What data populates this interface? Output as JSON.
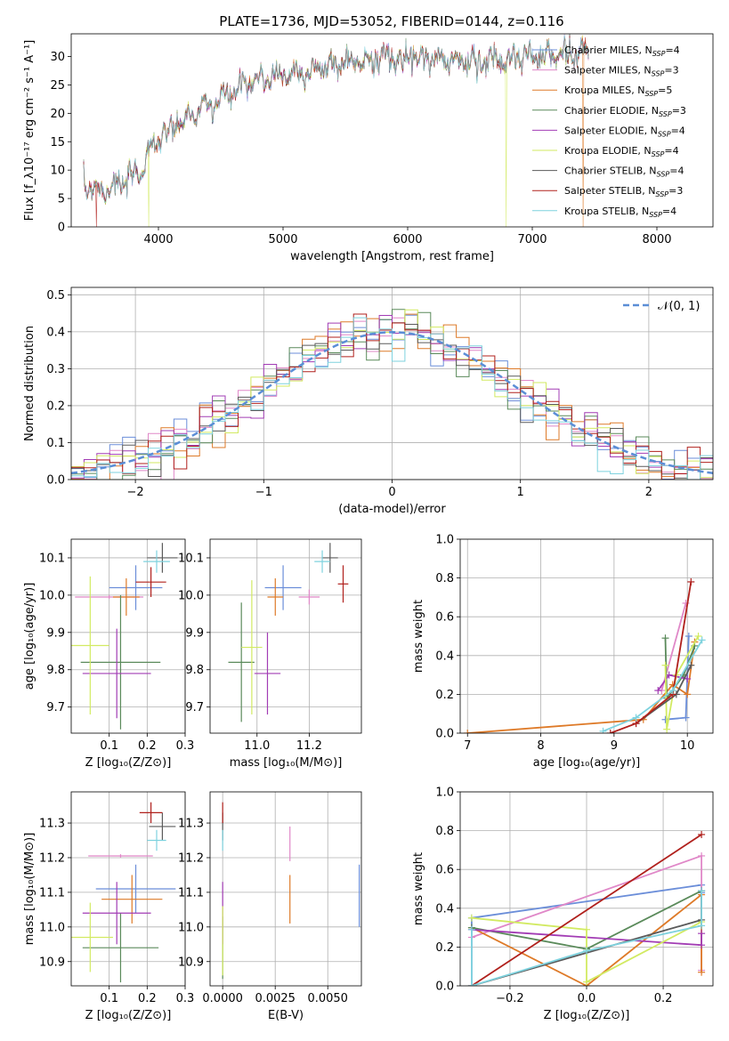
{
  "title": "PLATE=1736, MJD=53052, FIBERID=0144, z=0.116",
  "colors": {
    "chabrier_miles": "#6b8ed9",
    "salpeter_miles": "#e088c8",
    "kroupa_miles": "#de7a28",
    "chabrier_elodie": "#5a8a5a",
    "salpeter_elodie": "#a23cb4",
    "kroupa_elodie": "#d2ea62",
    "chabrier_stelib": "#5a5a5a",
    "salpeter_stelib": "#b0201c",
    "kroupa_stelib": "#7ed2de",
    "normal": "#5b8ed6"
  },
  "chart_data": [
    {
      "id": "spectrum",
      "type": "line",
      "title": "PLATE=1736, MJD=53052, FIBERID=0144, z=0.116",
      "xlabel": "wavelength [Angstrom, rest frame]",
      "ylabel": "Flux [f_λ10⁻¹⁷ erg cm⁻² s⁻¹ A⁻¹]",
      "xlim": [
        3300,
        8450
      ],
      "ylim": [
        0,
        34
      ],
      "xticks": [
        "4000",
        "5000",
        "6000",
        "7000",
        "8000"
      ],
      "yticks": [
        "0",
        "5",
        "10",
        "15",
        "20",
        "25",
        "30"
      ],
      "legend_position": "right",
      "continuum": {
        "x": [
          3400,
          3550,
          3700,
          3850,
          3950,
          4050,
          4150,
          4300,
          4500,
          4700,
          4900,
          5100,
          5300,
          5500,
          5700,
          5900,
          6100,
          6300,
          6500,
          6700,
          6900,
          7100,
          7300,
          7450
        ],
        "y": [
          7.5,
          6.5,
          7.5,
          9.5,
          14.5,
          16,
          18,
          20,
          22.5,
          25,
          26.5,
          27,
          28,
          29,
          29.5,
          30,
          30,
          29.5,
          29,
          29.5,
          30,
          30,
          30.5,
          31
        ]
      },
      "dips": [
        {
          "model": "Salpeter STELIB",
          "x": 3500
        },
        {
          "model": "Kroupa ELODIE",
          "x": 3920
        },
        {
          "model": "Kroupa ELODIE",
          "x": 6790
        },
        {
          "model": "Kroupa MILES",
          "x": 7410
        }
      ],
      "series": [
        {
          "name": "Chabrier MILES, N_SSP=4",
          "sub": "SSP",
          "before": "Chabrier MILES, N",
          "after": "=4",
          "color": "#6b8ed9"
        },
        {
          "name": "Salpeter MILES, N_SSP=3",
          "sub": "SSP",
          "before": "Salpeter MILES, N",
          "after": "=3",
          "color": "#e088c8"
        },
        {
          "name": "Kroupa MILES, N_SSP=5",
          "sub": "SSP",
          "before": "Kroupa MILES, N",
          "after": "=5",
          "color": "#de7a28"
        },
        {
          "name": "Chabrier ELODIE, N_SSP=3",
          "sub": "SSP",
          "before": "Chabrier ELODIE, N",
          "after": "=3",
          "color": "#5a8a5a"
        },
        {
          "name": "Salpeter ELODIE, N_SSP=4",
          "sub": "SSP",
          "before": "Salpeter ELODIE, N",
          "after": "=4",
          "color": "#a23cb4"
        },
        {
          "name": "Kroupa ELODIE, N_SSP=4",
          "sub": "SSP",
          "before": "Kroupa ELODIE, N",
          "after": "=4",
          "color": "#d2ea62"
        },
        {
          "name": "Chabrier STELIB, N_SSP=4",
          "sub": "SSP",
          "before": "Chabrier STELIB, N",
          "after": "=4",
          "color": "#5a5a5a"
        },
        {
          "name": "Salpeter STELIB, N_SSP=3",
          "sub": "SSP",
          "before": "Salpeter STELIB, N",
          "after": "=3",
          "color": "#b0201c"
        },
        {
          "name": "Kroupa STELIB, N_SSP=4",
          "sub": "SSP",
          "before": "Kroupa STELIB, N",
          "after": "=4",
          "color": "#7ed2de"
        }
      ]
    },
    {
      "id": "residuals",
      "type": "step",
      "xlabel": "(data-model)/error",
      "ylabel": "Normed distribution",
      "xlim": [
        -2.5,
        2.5
      ],
      "ylim": [
        0,
        0.52
      ],
      "xticks": [
        "−2",
        "−1",
        "0",
        "1",
        "2"
      ],
      "yticks": [
        "0.0",
        "0.1",
        "0.2",
        "0.3",
        "0.4",
        "0.5"
      ],
      "grid": true,
      "legend": "𝒩(0, 1)",
      "legend_position": "top-right",
      "bin_width": 0.1
    },
    {
      "id": "age_vs_Z",
      "type": "errorbar",
      "xlabel": "Z [log₁₀(Z/Z⊙)]",
      "ylabel": "age  [log₁₀(age/yr)]",
      "xlim": [
        0,
        0.3
      ],
      "ylim": [
        9.63,
        10.15
      ],
      "xticks": [
        "0.1",
        "0.2",
        "0.3"
      ],
      "yticks": [
        "9.7",
        "9.8",
        "9.9",
        "10.0",
        "10.1"
      ],
      "grid": true,
      "points": [
        {
          "model": "Chabrier MILES",
          "x": 0.17,
          "xerr": 0.07,
          "y": 10.02,
          "yerr": 0.06
        },
        {
          "model": "Salpeter MILES",
          "x": 0.1,
          "xerr": 0.09,
          "y": 9.995,
          "yerr": 0.005
        },
        {
          "model": "Kroupa MILES",
          "x": 0.145,
          "xerr": 0.035,
          "y": 9.995,
          "yerr": 0.05
        },
        {
          "model": "Chabrier ELODIE",
          "x": 0.13,
          "xerr": 0.105,
          "y": 9.82,
          "yerr": 0.18
        },
        {
          "model": "Salpeter ELODIE",
          "x": 0.12,
          "xerr": 0.09,
          "y": 9.79,
          "yerr": 0.12
        },
        {
          "model": "Kroupa ELODIE",
          "x": 0.05,
          "xerr": 0.05,
          "y": 9.865,
          "yerr": 0.185
        },
        {
          "model": "Chabrier STELIB",
          "x": 0.24,
          "xerr": 0.04,
          "y": 10.1,
          "yerr": 0.04
        },
        {
          "model": "Salpeter STELIB",
          "x": 0.21,
          "xerr": 0.04,
          "y": 10.035,
          "yerr": 0.04
        },
        {
          "model": "Kroupa STELIB",
          "x": 0.225,
          "xerr": 0.035,
          "y": 10.09,
          "yerr": 0.03
        }
      ]
    },
    {
      "id": "age_vs_mass",
      "type": "errorbar",
      "xlabel": "mass [log₁₀(M/M⊙)]",
      "ylabel": "",
      "xlim": [
        10.82,
        11.4
      ],
      "ylim": [
        9.63,
        10.15
      ],
      "xticks": [
        "11.0",
        "11.2"
      ],
      "yticks": [
        "9.7",
        "9.8",
        "9.9",
        "10.0",
        "10.1"
      ],
      "grid": true,
      "points": [
        {
          "model": "Chabrier MILES",
          "x": 11.1,
          "xerr": 0.07,
          "y": 10.02,
          "yerr": 0.06
        },
        {
          "model": "Salpeter MILES",
          "x": 11.2,
          "xerr": 0.04,
          "y": 9.995,
          "yerr": 0.02
        },
        {
          "model": "Kroupa MILES",
          "x": 11.07,
          "xerr": 0.03,
          "y": 9.995,
          "yerr": 0.05
        },
        {
          "model": "Chabrier ELODIE",
          "x": 10.94,
          "xerr": 0.05,
          "y": 9.82,
          "yerr": 0.16
        },
        {
          "model": "Salpeter ELODIE",
          "x": 11.04,
          "xerr": 0.05,
          "y": 9.79,
          "yerr": 0.11
        },
        {
          "model": "Kroupa ELODIE",
          "x": 10.98,
          "xerr": 0.04,
          "y": 9.86,
          "yerr": 0.18
        },
        {
          "model": "Chabrier STELIB",
          "x": 11.28,
          "xerr": 0.03,
          "y": 10.1,
          "yerr": 0.04
        },
        {
          "model": "Salpeter STELIB",
          "x": 11.33,
          "xerr": 0.02,
          "y": 10.03,
          "yerr": 0.05
        },
        {
          "model": "Kroupa STELIB",
          "x": 11.25,
          "xerr": 0.03,
          "y": 10.09,
          "yerr": 0.03
        }
      ]
    },
    {
      "id": "weight_vs_age",
      "type": "line",
      "xlabel": "age  [log₁₀(age/yr)]",
      "ylabel": "mass weight",
      "xlim": [
        6.9,
        10.35
      ],
      "ylim": [
        0,
        1
      ],
      "xticks": [
        "7",
        "8",
        "9",
        "10"
      ],
      "yticks": [
        "0.0",
        "0.2",
        "0.4",
        "0.6",
        "0.8",
        "1.0"
      ],
      "grid": true,
      "series": [
        {
          "model": "Chabrier MILES",
          "x": [
            9.7,
            9.98,
            10.02
          ],
          "y": [
            0.07,
            0.08,
            0.5
          ]
        },
        {
          "model": "Salpeter MILES",
          "x": [
            9.65,
            9.98
          ],
          "y": [
            0.22,
            0.67
          ]
        },
        {
          "model": "Kroupa MILES",
          "x": [
            7.0,
            9.4,
            9.8,
            10.0,
            10.1
          ],
          "y": [
            0.0,
            0.07,
            0.25,
            0.2,
            0.47
          ]
        },
        {
          "model": "Chabrier ELODIE",
          "x": [
            9.7,
            9.72,
            9.95,
            10.1
          ],
          "y": [
            0.49,
            0.18,
            0.3,
            0.45
          ]
        },
        {
          "model": "Salpeter ELODIE",
          "x": [
            9.6,
            9.75,
            10.0
          ],
          "y": [
            0.22,
            0.3,
            0.28
          ]
        },
        {
          "model": "Kroupa ELODIE",
          "x": [
            9.7,
            9.72,
            9.85,
            10.15
          ],
          "y": [
            0.35,
            0.02,
            0.3,
            0.5
          ]
        },
        {
          "model": "Chabrier STELIB",
          "x": [
            9.3,
            9.85,
            10.05
          ],
          "y": [
            0.05,
            0.2,
            0.35
          ]
        },
        {
          "model": "Salpeter STELIB",
          "x": [
            8.95,
            9.3,
            9.8,
            10.05
          ],
          "y": [
            0.0,
            0.05,
            0.2,
            0.78
          ]
        },
        {
          "model": "Kroupa STELIB",
          "x": [
            8.85,
            9.3,
            9.8,
            10.2
          ],
          "y": [
            0.01,
            0.08,
            0.22,
            0.48
          ]
        }
      ]
    },
    {
      "id": "mass_vs_Z",
      "type": "errorbar",
      "xlabel": "Z [log₁₀(Z/Z⊙)]",
      "ylabel": "mass [log₁₀(M/M⊙)]",
      "xlim": [
        0,
        0.3
      ],
      "ylim": [
        10.83,
        11.39
      ],
      "xticks": [
        "0.1",
        "0.2",
        "0.3"
      ],
      "yticks": [
        "10.9",
        "11.0",
        "11.1",
        "11.2",
        "11.3"
      ],
      "grid": true,
      "points": [
        {
          "model": "Chabrier MILES",
          "x": 0.17,
          "xerr": 0.105,
          "y": 11.11,
          "yerr": 0.07
        },
        {
          "model": "Salpeter MILES",
          "x": 0.13,
          "xerr": 0.085,
          "y": 11.205,
          "yerr": 0.005
        },
        {
          "model": "Kroupa MILES",
          "x": 0.16,
          "xerr": 0.08,
          "y": 11.08,
          "yerr": 0.07
        },
        {
          "model": "Chabrier ELODIE",
          "x": 0.13,
          "xerr": 0.1,
          "y": 10.94,
          "yerr": 0.1
        },
        {
          "model": "Salpeter ELODIE",
          "x": 0.12,
          "xerr": 0.09,
          "y": 11.04,
          "yerr": 0.09
        },
        {
          "model": "Kroupa ELODIE",
          "x": 0.05,
          "xerr": 0.06,
          "y": 10.97,
          "yerr": 0.1
        },
        {
          "model": "Chabrier STELIB",
          "x": 0.24,
          "xerr": 0.035,
          "y": 11.29,
          "yerr": 0.04
        },
        {
          "model": "Salpeter STELIB",
          "x": 0.21,
          "xerr": 0.03,
          "y": 11.33,
          "yerr": 0.03
        },
        {
          "model": "Kroupa STELIB",
          "x": 0.225,
          "xerr": 0.025,
          "y": 11.25,
          "yerr": 0.03
        }
      ]
    },
    {
      "id": "mass_vs_ebv",
      "type": "errorbar",
      "xlabel": "E(B-V)",
      "ylabel": "",
      "xlim": [
        -0.0006,
        0.0066
      ],
      "ylim": [
        10.83,
        11.39
      ],
      "xticks": [
        "0.0000",
        "0.0025",
        "0.0050"
      ],
      "yticks": [
        "10.9",
        "11.0",
        "11.1",
        "11.2",
        "11.3"
      ],
      "grid": true,
      "points": [
        {
          "model": "Chabrier MILES",
          "x": 0.0065,
          "xerr": 0,
          "y": 11.09,
          "yerr": 0.09
        },
        {
          "model": "Salpeter MILES",
          "x": 0.0032,
          "xerr": 0,
          "y": 11.24,
          "yerr": 0.05
        },
        {
          "model": "Kroupa MILES",
          "x": 0.0032,
          "xerr": 0,
          "y": 11.08,
          "yerr": 0.07
        },
        {
          "model": "Chabrier ELODIE",
          "x": 0.0,
          "xerr": 0,
          "y": 10.94,
          "yerr": 0.09
        },
        {
          "model": "Salpeter ELODIE",
          "x": 0.0,
          "xerr": 0,
          "y": 11.04,
          "yerr": 0.09
        },
        {
          "model": "Kroupa ELODIE",
          "x": 0.0,
          "xerr": 0,
          "y": 10.96,
          "yerr": 0.1
        },
        {
          "model": "Chabrier STELIB",
          "x": 0.0,
          "xerr": 0,
          "y": 11.29,
          "yerr": 0.04
        },
        {
          "model": "Salpeter STELIB",
          "x": 0.0,
          "xerr": 0,
          "y": 11.33,
          "yerr": 0.03
        },
        {
          "model": "Kroupa STELIB",
          "x": 0.0,
          "xerr": 0,
          "y": 11.25,
          "yerr": 0.03
        }
      ]
    },
    {
      "id": "weight_vs_Z",
      "type": "line",
      "xlabel": "Z [log₁₀(Z/Z⊙)]",
      "ylabel": "mass weight",
      "xlim": [
        -0.33,
        0.33
      ],
      "ylim": [
        0,
        1
      ],
      "xticks": [
        "−0.2",
        "0.0",
        "0.2"
      ],
      "yticks": [
        "0.0",
        "0.2",
        "0.4",
        "0.6",
        "0.8",
        "1.0"
      ],
      "grid": true,
      "series": [
        {
          "model": "Chabrier MILES",
          "x": [
            -0.3,
            -0.3,
            0.3,
            0.3
          ],
          "y": [
            0.0,
            0.35,
            0.52,
            0.48
          ]
        },
        {
          "model": "Salpeter MILES",
          "x": [
            -0.3,
            0.3,
            0.3
          ],
          "y": [
            0.25,
            0.67,
            0.08
          ]
        },
        {
          "model": "Kroupa MILES",
          "x": [
            -0.3,
            0.0,
            0.3,
            0.3
          ],
          "y": [
            0.3,
            0.0,
            0.47,
            0.07
          ]
        },
        {
          "model": "Chabrier ELODIE",
          "x": [
            -0.3,
            0.0,
            0.3
          ],
          "y": [
            0.3,
            0.19,
            0.49
          ]
        },
        {
          "model": "Salpeter ELODIE",
          "x": [
            -0.3,
            0.3,
            0.3
          ],
          "y": [
            0.29,
            0.21,
            0.27
          ]
        },
        {
          "model": "Kroupa ELODIE",
          "x": [
            -0.3,
            0.0,
            0.0,
            0.3
          ],
          "y": [
            0.35,
            0.29,
            0.02,
            0.33
          ]
        },
        {
          "model": "Chabrier STELIB",
          "x": [
            -0.3,
            0.3,
            0.3
          ],
          "y": [
            0.0,
            0.34,
            0.49
          ]
        },
        {
          "model": "Salpeter STELIB",
          "x": [
            -0.3,
            0.3
          ],
          "y": [
            0.0,
            0.78
          ]
        },
        {
          "model": "Kroupa STELIB",
          "x": [
            -0.3,
            -0.3,
            0.0,
            0.3,
            0.3
          ],
          "y": [
            0.29,
            0.0,
            0.18,
            0.31,
            0.49
          ]
        }
      ]
    }
  ]
}
